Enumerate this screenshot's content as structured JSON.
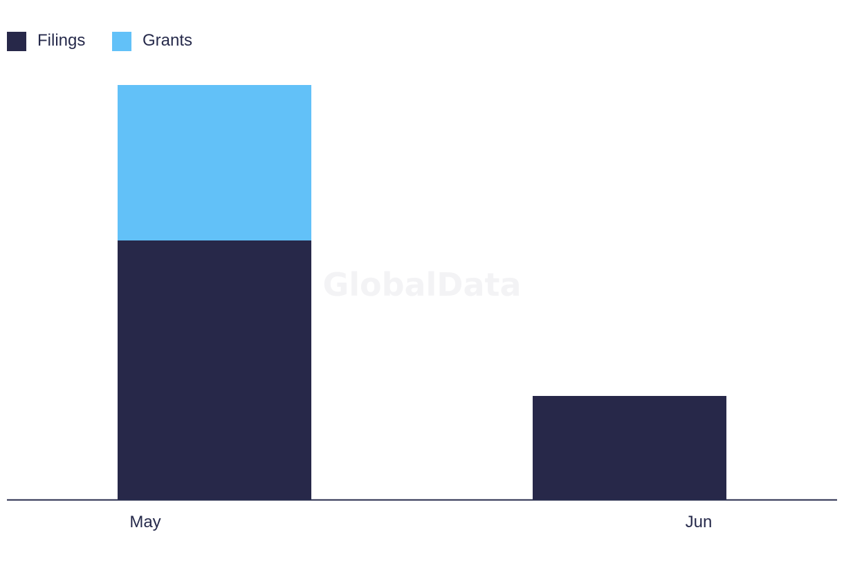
{
  "watermark": "GlobalData",
  "colors": {
    "filings": "#272849",
    "grants": "#62c1f8",
    "axis": "#262a4b",
    "text": "#262a4b"
  },
  "chart_data": {
    "type": "bar",
    "stacked": true,
    "categories": [
      "May",
      "Jun"
    ],
    "series": [
      {
        "name": "Filings",
        "values": [
          5,
          2
        ]
      },
      {
        "name": "Grants",
        "values": [
          3,
          0
        ]
      }
    ],
    "title": "",
    "xlabel": "",
    "ylabel": "",
    "ylim": [
      0,
      8
    ],
    "grid": false,
    "legend": "top-left"
  }
}
